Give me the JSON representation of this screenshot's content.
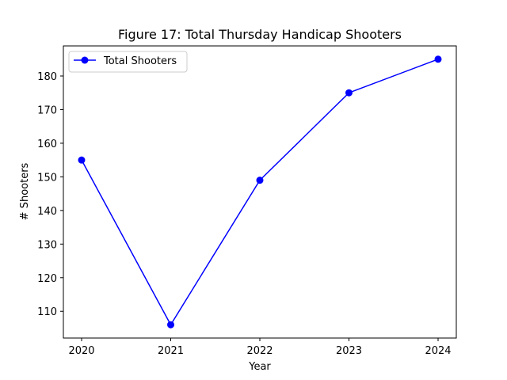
{
  "chart_data": {
    "type": "line",
    "title": "Figure 17: Total Thursday Handicap Shooters",
    "xlabel": "Year",
    "ylabel": "# Shooters",
    "categories": [
      "2020",
      "2021",
      "2022",
      "2023",
      "2024"
    ],
    "series": [
      {
        "name": "Total Shooters",
        "values": [
          155,
          106,
          149,
          175,
          185
        ],
        "color": "#0000ff",
        "marker": "circle"
      }
    ],
    "ylim": [
      102.05,
      188.95
    ],
    "yticks": [
      110,
      120,
      130,
      140,
      150,
      160,
      170,
      180
    ],
    "grid": false,
    "legend": "top-left"
  }
}
